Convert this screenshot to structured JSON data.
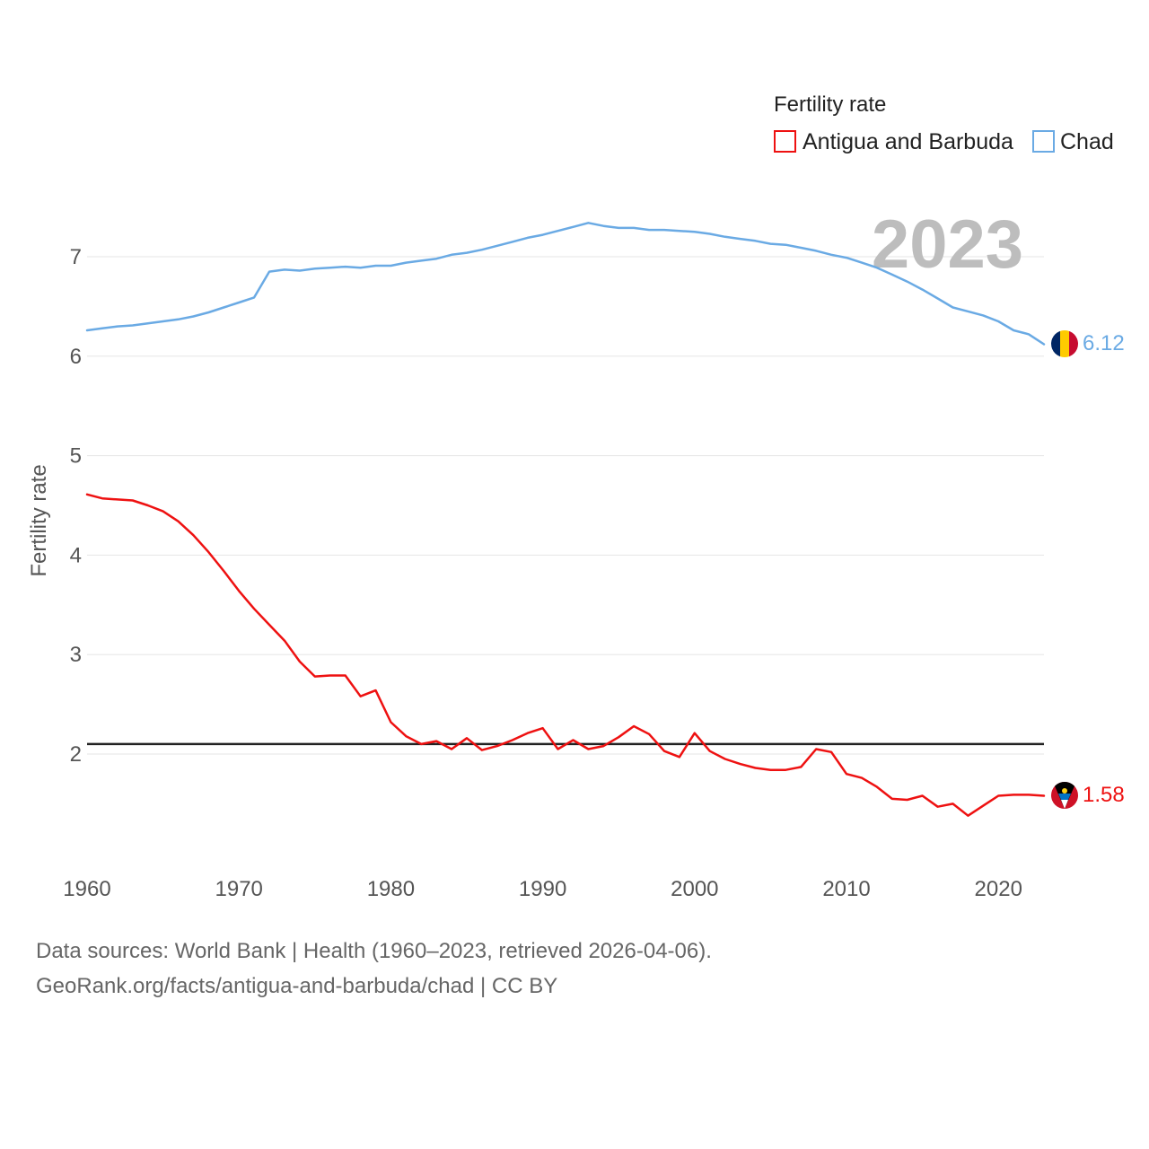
{
  "chart_data": {
    "type": "line",
    "legend_title": "Fertility rate",
    "ylabel": "Fertility rate",
    "year_label": "2023",
    "ylim": [
      1,
      7.6
    ],
    "xlim": [
      1960,
      2023
    ],
    "y_ticks": [
      2,
      3,
      4,
      5,
      6,
      7
    ],
    "x_ticks": [
      1960,
      1970,
      1980,
      1990,
      2000,
      2010,
      2020
    ],
    "reference_line": 2.1,
    "legend_position": "top-right",
    "series": [
      {
        "name": "Antigua and Barbuda",
        "color": "#ee1111",
        "end_label": "1.58",
        "values": [
          4.61,
          4.57,
          4.56,
          4.55,
          4.5,
          4.44,
          4.34,
          4.2,
          4.03,
          3.84,
          3.64,
          3.46,
          3.3,
          3.14,
          2.93,
          2.78,
          2.79,
          2.79,
          2.58,
          2.64,
          2.32,
          2.18,
          2.1,
          2.13,
          2.05,
          2.16,
          2.04,
          2.08,
          2.14,
          2.21,
          2.26,
          2.05,
          2.14,
          2.05,
          2.08,
          2.17,
          2.28,
          2.2,
          2.03,
          1.97,
          2.21,
          2.03,
          1.95,
          1.9,
          1.86,
          1.84,
          1.84,
          1.87,
          2.05,
          2.02,
          1.8,
          1.76,
          1.67,
          1.55,
          1.54,
          1.58,
          1.47,
          1.5,
          1.38,
          1.48,
          1.58,
          1.59,
          1.59,
          1.58
        ]
      },
      {
        "name": "Chad",
        "color": "#6aaae4",
        "end_label": "6.12",
        "values": [
          6.26,
          6.28,
          6.3,
          6.31,
          6.33,
          6.35,
          6.37,
          6.4,
          6.44,
          6.49,
          6.54,
          6.59,
          6.85,
          6.87,
          6.86,
          6.88,
          6.89,
          6.9,
          6.89,
          6.91,
          6.91,
          6.94,
          6.96,
          6.98,
          7.02,
          7.04,
          7.07,
          7.11,
          7.15,
          7.19,
          7.22,
          7.26,
          7.3,
          7.34,
          7.31,
          7.29,
          7.29,
          7.27,
          7.27,
          7.26,
          7.25,
          7.23,
          7.2,
          7.18,
          7.16,
          7.13,
          7.12,
          7.09,
          7.06,
          7.02,
          6.99,
          6.94,
          6.89,
          6.82,
          6.75,
          6.67,
          6.58,
          6.49,
          6.45,
          6.41,
          6.35,
          6.26,
          6.22,
          6.12
        ]
      }
    ]
  },
  "footer": {
    "line1": "Data sources: World Bank | Health (1960–2023, retrieved 2026-04-06).",
    "line2": "GeoRank.org/facts/antigua-and-barbuda/chad | CC BY"
  }
}
